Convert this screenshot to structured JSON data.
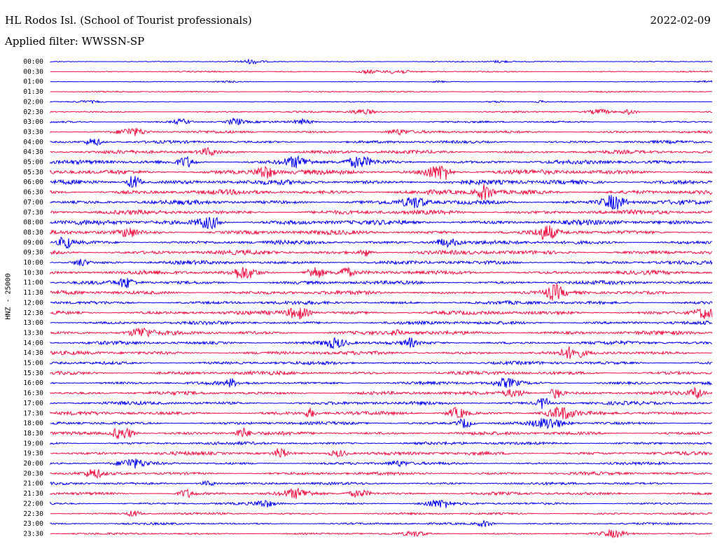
{
  "header": {
    "title": "HL Rodos Isl. (School of Tourist professionals)",
    "date": "2022-02-09",
    "filter": "Applied filter: WWSSN-SP"
  },
  "colors": {
    "even_trace": "#0000ee",
    "odd_trace": "#ee1144",
    "background": "#ffffff"
  },
  "chart_data": {
    "type": "line",
    "title": "HL Rodos Isl. (School of Tourist professionals)",
    "ylabel": "HNZ - 25000",
    "xlabel": "",
    "grid": false,
    "legend": "none",
    "categories": [
      "00:00",
      "00:30",
      "01:00",
      "01:30",
      "02:00",
      "02:30",
      "03:00",
      "03:30",
      "04:00",
      "04:30",
      "05:00",
      "05:30",
      "06:00",
      "06:30",
      "07:00",
      "07:30",
      "08:00",
      "08:30",
      "09:00",
      "09:30",
      "10:00",
      "10:30",
      "11:00",
      "11:30",
      "12:00",
      "12:30",
      "13:00",
      "13:30",
      "14:00",
      "14:30",
      "15:00",
      "15:30",
      "16:00",
      "16:30",
      "17:00",
      "17:30",
      "18:00",
      "18:30",
      "19:00",
      "19:30",
      "20:00",
      "20:30",
      "21:00",
      "21:30",
      "22:00",
      "22:30",
      "23:00",
      "23:30"
    ],
    "amplitude": [
      0.12,
      0.15,
      0.08,
      0.14,
      0.1,
      0.18,
      0.22,
      0.3,
      0.32,
      0.4,
      0.45,
      0.55,
      0.55,
      0.55,
      0.5,
      0.5,
      0.55,
      0.5,
      0.45,
      0.5,
      0.42,
      0.45,
      0.42,
      0.45,
      0.4,
      0.45,
      0.4,
      0.45,
      0.4,
      0.42,
      0.38,
      0.42,
      0.38,
      0.4,
      0.4,
      0.42,
      0.36,
      0.4,
      0.35,
      0.4,
      0.32,
      0.35,
      0.3,
      0.35,
      0.28,
      0.25,
      0.24,
      0.22
    ]
  }
}
